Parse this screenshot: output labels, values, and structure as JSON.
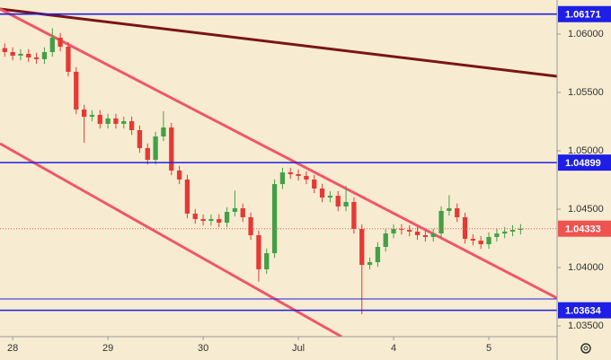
{
  "chart_data": {
    "type": "candlestick",
    "x": [
      0,
      1,
      2,
      3,
      4,
      5,
      6,
      7,
      8,
      9,
      10,
      11,
      12,
      13,
      14,
      15,
      16,
      17,
      18,
      19,
      20,
      21,
      22,
      23,
      24,
      25,
      26,
      27,
      28,
      29,
      30,
      31,
      32,
      33,
      34,
      35,
      36,
      37,
      38,
      39,
      40,
      41,
      42,
      43,
      44,
      45,
      46,
      47,
      48,
      49,
      50,
      51,
      52,
      53,
      54,
      55,
      56,
      57,
      58,
      59,
      60,
      61,
      62,
      63,
      64,
      65
    ],
    "open": [
      1.0588,
      1.05846,
      1.05815,
      1.05831,
      1.058,
      1.05785,
      1.05846,
      1.05969,
      1.05892,
      1.05677,
      1.05354,
      1.05292,
      1.05308,
      1.05231,
      1.05277,
      1.05231,
      1.05254,
      1.05177,
      1.05023,
      1.04923,
      1.05123,
      1.052,
      1.04831,
      1.04754,
      1.04462,
      1.04415,
      1.044,
      1.04415,
      1.04385,
      1.04477,
      1.04508,
      1.04431,
      1.04277,
      1.03985,
      1.04123,
      1.04715,
      1.04815,
      1.048,
      1.04785,
      1.04754,
      1.04677,
      1.046,
      1.04615,
      1.04523,
      1.04562,
      1.04331,
      1.04023,
      1.04046,
      1.04177,
      1.04292,
      1.04331,
      1.04323,
      1.04308,
      1.04277,
      1.04262,
      1.04292,
      1.04485,
      1.04508,
      1.04431,
      1.04246,
      1.04231,
      1.042,
      1.04262,
      1.04292,
      1.04308,
      1.04323
    ],
    "high": [
      1.0592,
      1.05886,
      1.05871,
      1.05871,
      1.0584,
      1.05886,
      1.0605,
      1.06009,
      1.05932,
      1.05717,
      1.05394,
      1.05348,
      1.05348,
      1.05317,
      1.05317,
      1.05294,
      1.05294,
      1.05217,
      1.05063,
      1.05163,
      1.0534,
      1.0524,
      1.04871,
      1.04794,
      1.04502,
      1.04455,
      1.04455,
      1.04455,
      1.04517,
      1.0466,
      1.04548,
      1.04471,
      1.04317,
      1.04163,
      1.04755,
      1.04855,
      1.04855,
      1.0484,
      1.04825,
      1.04794,
      1.04717,
      1.04655,
      1.04655,
      1.047,
      1.04602,
      1.04371,
      1.04086,
      1.04217,
      1.04332,
      1.04371,
      1.04371,
      1.04363,
      1.04348,
      1.04317,
      1.04332,
      1.04525,
      1.0462,
      1.04548,
      1.04471,
      1.04286,
      1.04271,
      1.04302,
      1.04332,
      1.04348,
      1.04363,
      1.04373
    ],
    "low": [
      1.05806,
      1.05775,
      1.05775,
      1.0576,
      1.05745,
      1.05745,
      1.05806,
      1.05852,
      1.05637,
      1.05314,
      1.0507,
      1.05252,
      1.05191,
      1.05191,
      1.05191,
      1.05191,
      1.05137,
      1.04983,
      1.04883,
      1.04883,
      1.05083,
      1.04791,
      1.04714,
      1.04422,
      1.04375,
      1.0436,
      1.0436,
      1.04345,
      1.04345,
      1.04437,
      1.04391,
      1.04237,
      1.0388,
      1.03945,
      1.04083,
      1.04675,
      1.0476,
      1.04745,
      1.04714,
      1.04637,
      1.0456,
      1.0456,
      1.04483,
      1.04483,
      1.04291,
      1.036,
      1.03983,
      1.04006,
      1.04137,
      1.04252,
      1.04283,
      1.04268,
      1.04237,
      1.04222,
      1.04222,
      1.04252,
      1.04445,
      1.04391,
      1.04206,
      1.04191,
      1.0416,
      1.0416,
      1.04222,
      1.04252,
      1.04268,
      1.04283
    ],
    "close": [
      1.05846,
      1.05815,
      1.05831,
      1.058,
      1.05785,
      1.05846,
      1.05969,
      1.05892,
      1.05677,
      1.05354,
      1.05292,
      1.05308,
      1.05231,
      1.05277,
      1.05231,
      1.05254,
      1.05177,
      1.05023,
      1.04923,
      1.05123,
      1.052,
      1.04831,
      1.04754,
      1.04462,
      1.04415,
      1.044,
      1.04415,
      1.04385,
      1.04477,
      1.04508,
      1.04431,
      1.04277,
      1.03985,
      1.04123,
      1.04715,
      1.04815,
      1.048,
      1.04785,
      1.04754,
      1.04677,
      1.046,
      1.04615,
      1.04523,
      1.04562,
      1.04331,
      1.04023,
      1.04046,
      1.04177,
      1.04292,
      1.04331,
      1.04323,
      1.04308,
      1.04277,
      1.04262,
      1.04292,
      1.04485,
      1.04508,
      1.04431,
      1.04246,
      1.04231,
      1.042,
      1.04262,
      1.04292,
      1.04308,
      1.04323,
      1.04333
    ],
    "up_color": "#43a047",
    "down_color": "#e53935",
    "xlim": [
      -0.6,
      69.6
    ],
    "xticks": [
      {
        "value": 1,
        "label": "28"
      },
      {
        "value": 13,
        "label": "29"
      },
      {
        "value": 25,
        "label": "30"
      },
      {
        "value": 37,
        "label": "Jul"
      },
      {
        "value": 49,
        "label": "4"
      },
      {
        "value": 61,
        "label": "5"
      }
    ],
    "ylim": [
      1.03408,
      1.06292
    ],
    "yticks": [
      {
        "value": 1.035,
        "label": "1.03500"
      },
      {
        "value": 1.04,
        "label": "1.04000"
      },
      {
        "value": 1.045,
        "label": "1.04500"
      },
      {
        "value": 1.05,
        "label": "1.05000"
      },
      {
        "value": 1.055,
        "label": "1.05500"
      },
      {
        "value": 1.06,
        "label": "1.06000"
      }
    ],
    "levels": [
      {
        "value": 1.06171,
        "color": "#1e1ee6",
        "labeled": true
      },
      {
        "value": 1.04899,
        "color": "#1e1ee6",
        "labeled": true
      },
      {
        "value": 1.03731,
        "color": "#1e1ee6",
        "labeled": false
      },
      {
        "value": 1.03634,
        "color": "#1e1ee6",
        "labeled": true
      }
    ],
    "last_price": {
      "value": 1.04333,
      "color": "#ef5350"
    },
    "trendlines": [
      {
        "color": "#7b1414",
        "points": [
          [
            -0.6,
            1.06215
          ],
          [
            69.6,
            1.05638
          ]
        ]
      },
      {
        "color": "#f0566a",
        "points": [
          [
            -0.6,
            1.06215
          ],
          [
            69.6,
            1.03738
          ]
        ]
      },
      {
        "color": "#f0566a",
        "points": [
          [
            -0.6,
            1.05062
          ],
          [
            42.45,
            1.03408
          ]
        ]
      }
    ]
  }
}
